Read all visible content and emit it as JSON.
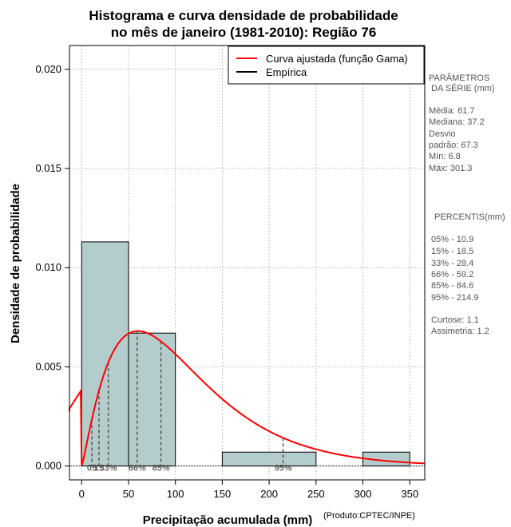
{
  "chart_data": {
    "type": "histogram",
    "title_line1": "Histograma e curva densidade de probabilidade",
    "title_line2": "no mês de janeiro (1981-2010): Região 76",
    "xlabel": "Precipitação acumulada (mm)",
    "ylabel": "Densidade de probabilidade",
    "credit": "(Produto:CPTEC/INPE)",
    "xlim": [
      -13,
      366
    ],
    "ylim": [
      -0.0007,
      0.0212
    ],
    "x_ticks": [
      0,
      50,
      100,
      150,
      200,
      250,
      300,
      350
    ],
    "x_tick_labels": [
      "0",
      "50",
      "100",
      "150",
      "200",
      "250",
      "300",
      "350"
    ],
    "y_ticks": [
      0.0,
      0.005,
      0.01,
      0.015,
      0.02
    ],
    "y_tick_labels": [
      "0.000",
      "0.005",
      "0.010",
      "0.015",
      "0.020"
    ],
    "grid": true,
    "bars": [
      {
        "x0": 0,
        "x1": 50,
        "density": 0.0113
      },
      {
        "x0": 50,
        "x1": 100,
        "density": 0.0067
      },
      {
        "x0": 150,
        "x1": 250,
        "density": 0.0007
      },
      {
        "x0": 300,
        "x1": 350,
        "density": 0.0007
      }
    ],
    "bar_color": "#b4cccc",
    "curve_color": "#ff0000",
    "gamma_shape": 2.2,
    "gamma_scale": 50,
    "percentile_lines": [
      {
        "x": 10.9,
        "label": "05"
      },
      {
        "x": 18.5,
        "label": "15"
      },
      {
        "x": 28.4,
        "label": "33%"
      },
      {
        "x": 59.2,
        "label": "66%"
      },
      {
        "x": 84.6,
        "label": "85%"
      },
      {
        "x": 214.9,
        "label": "95%"
      }
    ],
    "legend": [
      {
        "label": "Curva ajustada (função Gama)",
        "color": "#ff0000"
      },
      {
        "label": "Empírica",
        "color": "#000000"
      }
    ],
    "legend_position": "top-right"
  },
  "stats_panel": {
    "params_title_1": "PARÂMETROS",
    "params_title_2": "DA SÉRIE (mm)",
    "media": "Média:  61.7",
    "mediana": "Mediana:  37.2",
    "desvio_1": "Desvio",
    "desvio_2": "padrão:  67.3",
    "min": "Mín:  6.8",
    "max": "Máx:  301.3",
    "percentis_title": "PERCENTIS(mm)",
    "p05": "05% -   10.9",
    "p15": "15% -   18.5",
    "p33": "33% -   28.4",
    "p66": "66% -   59.2",
    "p85": "85% -   84.6",
    "p95": "95% -   214.9",
    "curtose": "Curtose:  1.1",
    "assimetria": "Assimetria:  1.2"
  }
}
